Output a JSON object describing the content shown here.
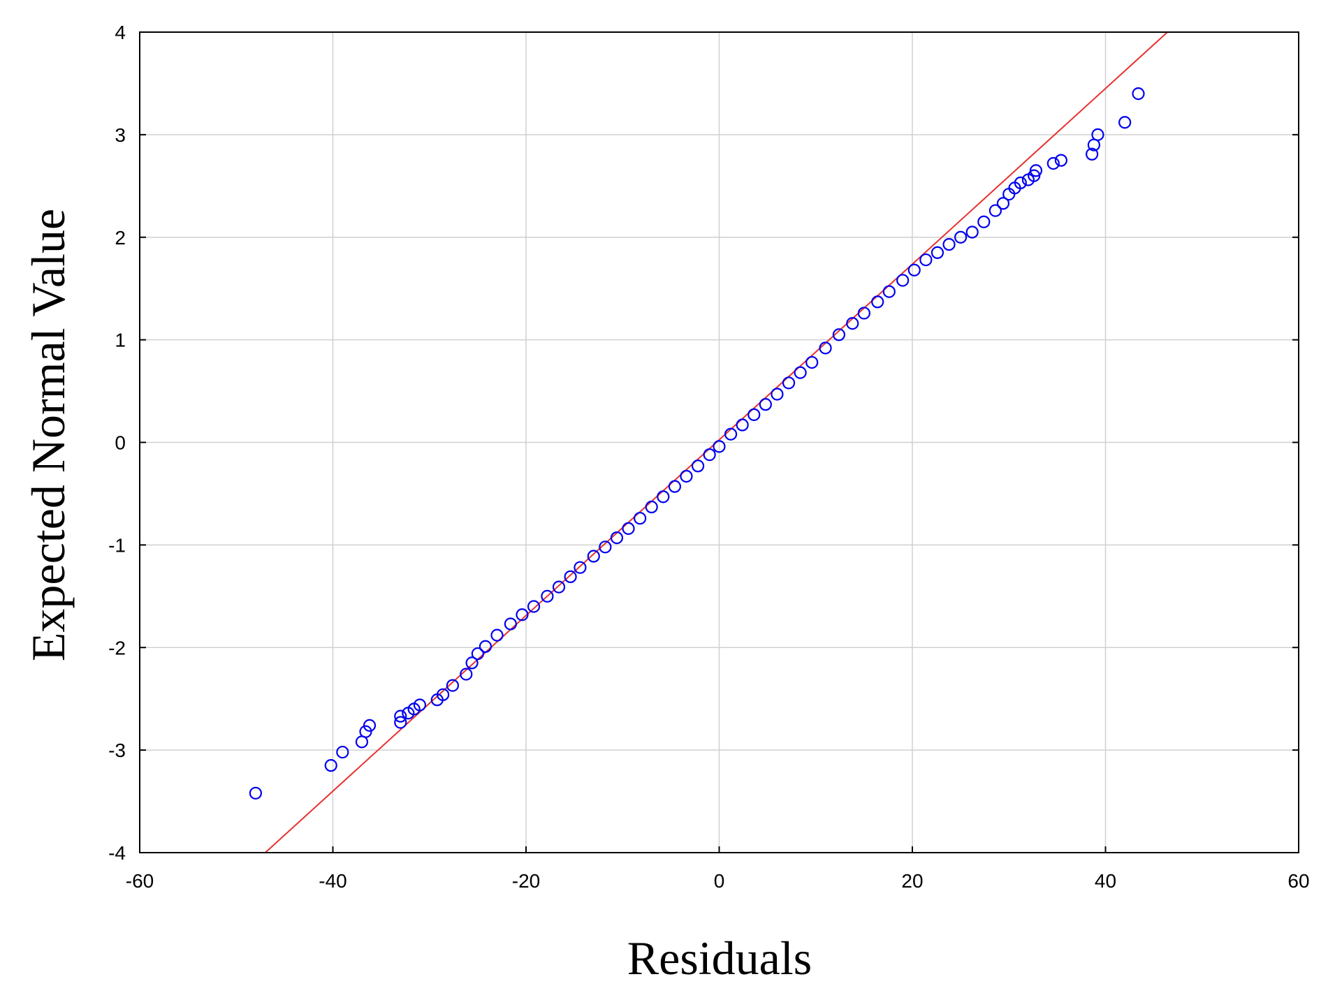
{
  "chart_data": {
    "type": "scatter",
    "title": "",
    "xlabel": "Residuals",
    "ylabel": "Expected Normal Value",
    "xlim": [
      -60,
      60
    ],
    "ylim": [
      -4,
      4
    ],
    "xticks": [
      -60,
      -40,
      -20,
      0,
      20,
      40,
      60
    ],
    "yticks": [
      -4,
      -3,
      -2,
      -1,
      0,
      1,
      2,
      3,
      4
    ],
    "xtick_labels": [
      "-60",
      "-40",
      "-20",
      "0",
      "20",
      "40",
      "60"
    ],
    "ytick_labels": [
      "-4",
      "-3",
      "-2",
      "-1",
      "0",
      "1",
      "2",
      "3",
      "4"
    ],
    "grid": true,
    "colors": {
      "points": "#0000ee",
      "line": "#e83030",
      "grid": "#d0d0d0",
      "axes": "#000000"
    },
    "reference_line": {
      "x": [
        -47,
        47
      ],
      "y": [
        -4,
        4.05
      ]
    },
    "series": [
      {
        "x": [
          -48,
          -40.2,
          -39,
          -37,
          -36.6,
          -36.2,
          -33,
          -33,
          -32.2,
          -31.6,
          -31,
          -29.2,
          -28.6,
          -27.6,
          -26.2,
          -25.6,
          -25,
          -24.2,
          -23,
          -21.6,
          -20.4,
          -19.2,
          -17.8,
          -16.6,
          -15.4,
          -14.4,
          -13,
          -11.8,
          -10.6,
          -9.4,
          -8.2,
          -7,
          -5.8,
          -4.6,
          -3.4,
          -2.2,
          -1,
          0,
          1.2,
          2.4,
          3.6,
          4.8,
          6,
          7.2,
          8.4,
          9.6,
          11,
          12.4,
          13.8,
          15,
          16.4,
          17.6,
          19,
          20.2,
          21.4,
          22.6,
          23.8,
          25,
          26.2,
          27.4,
          28.6,
          29.4,
          30.0,
          30.6,
          31.2,
          32.0,
          32.6,
          32.8,
          34.6,
          35.4,
          38.6,
          38.8,
          39.2,
          42,
          43.4
        ],
        "y": [
          -3.42,
          -3.15,
          -3.02,
          -2.92,
          -2.82,
          -2.76,
          -2.73,
          -2.67,
          -2.64,
          -2.6,
          -2.56,
          -2.51,
          -2.46,
          -2.37,
          -2.26,
          -2.15,
          -2.06,
          -1.99,
          -1.88,
          -1.77,
          -1.68,
          -1.6,
          -1.5,
          -1.41,
          -1.31,
          -1.22,
          -1.11,
          -1.02,
          -0.93,
          -0.84,
          -0.74,
          -0.63,
          -0.53,
          -0.43,
          -0.33,
          -0.23,
          -0.12,
          -0.04,
          0.08,
          0.17,
          0.27,
          0.37,
          0.47,
          0.58,
          0.68,
          0.78,
          0.92,
          1.05,
          1.16,
          1.26,
          1.37,
          1.47,
          1.58,
          1.68,
          1.78,
          1.85,
          1.93,
          2.0,
          2.05,
          2.15,
          2.26,
          2.33,
          2.42,
          2.48,
          2.53,
          2.56,
          2.6,
          2.65,
          2.72,
          2.75,
          2.81,
          2.9,
          3.0,
          3.12,
          3.4
        ]
      }
    ]
  }
}
